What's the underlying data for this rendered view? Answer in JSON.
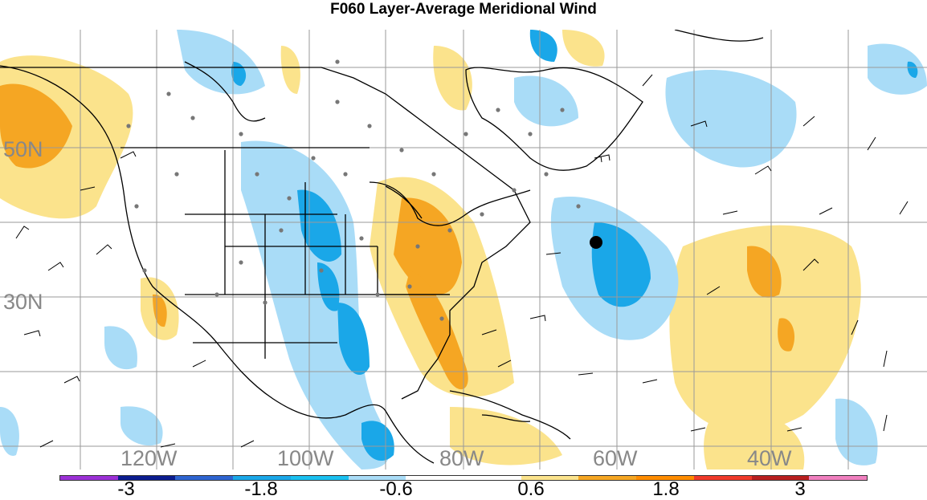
{
  "title": "F060 Layer-Average Meridional Wind",
  "map": {
    "lat_labels": [
      "50N",
      "30N"
    ],
    "lon_labels": [
      "120W",
      "100W",
      "80W",
      "60W",
      "40W"
    ],
    "positive_color": "#f5a623",
    "negative_color": "#29b6f0",
    "light_positive_color": "#fbe38c",
    "light_negative_color": "#a9dcf7"
  },
  "colorbar": {
    "colors": [
      "#9b30d6",
      "#0b1c8e",
      "#2e64d0",
      "#1aa7e8",
      "#19c0f0",
      "#a9dcf7",
      "#ffffff",
      "#ffffff",
      "#fbe38c",
      "#f5a623",
      "#ff8c00",
      "#ef3a2a",
      "#b81f1f",
      "#f07fbf"
    ],
    "tick_labels": [
      "-3",
      "-1.8",
      "-0.6",
      "0.6",
      "1.8",
      "3"
    ]
  }
}
